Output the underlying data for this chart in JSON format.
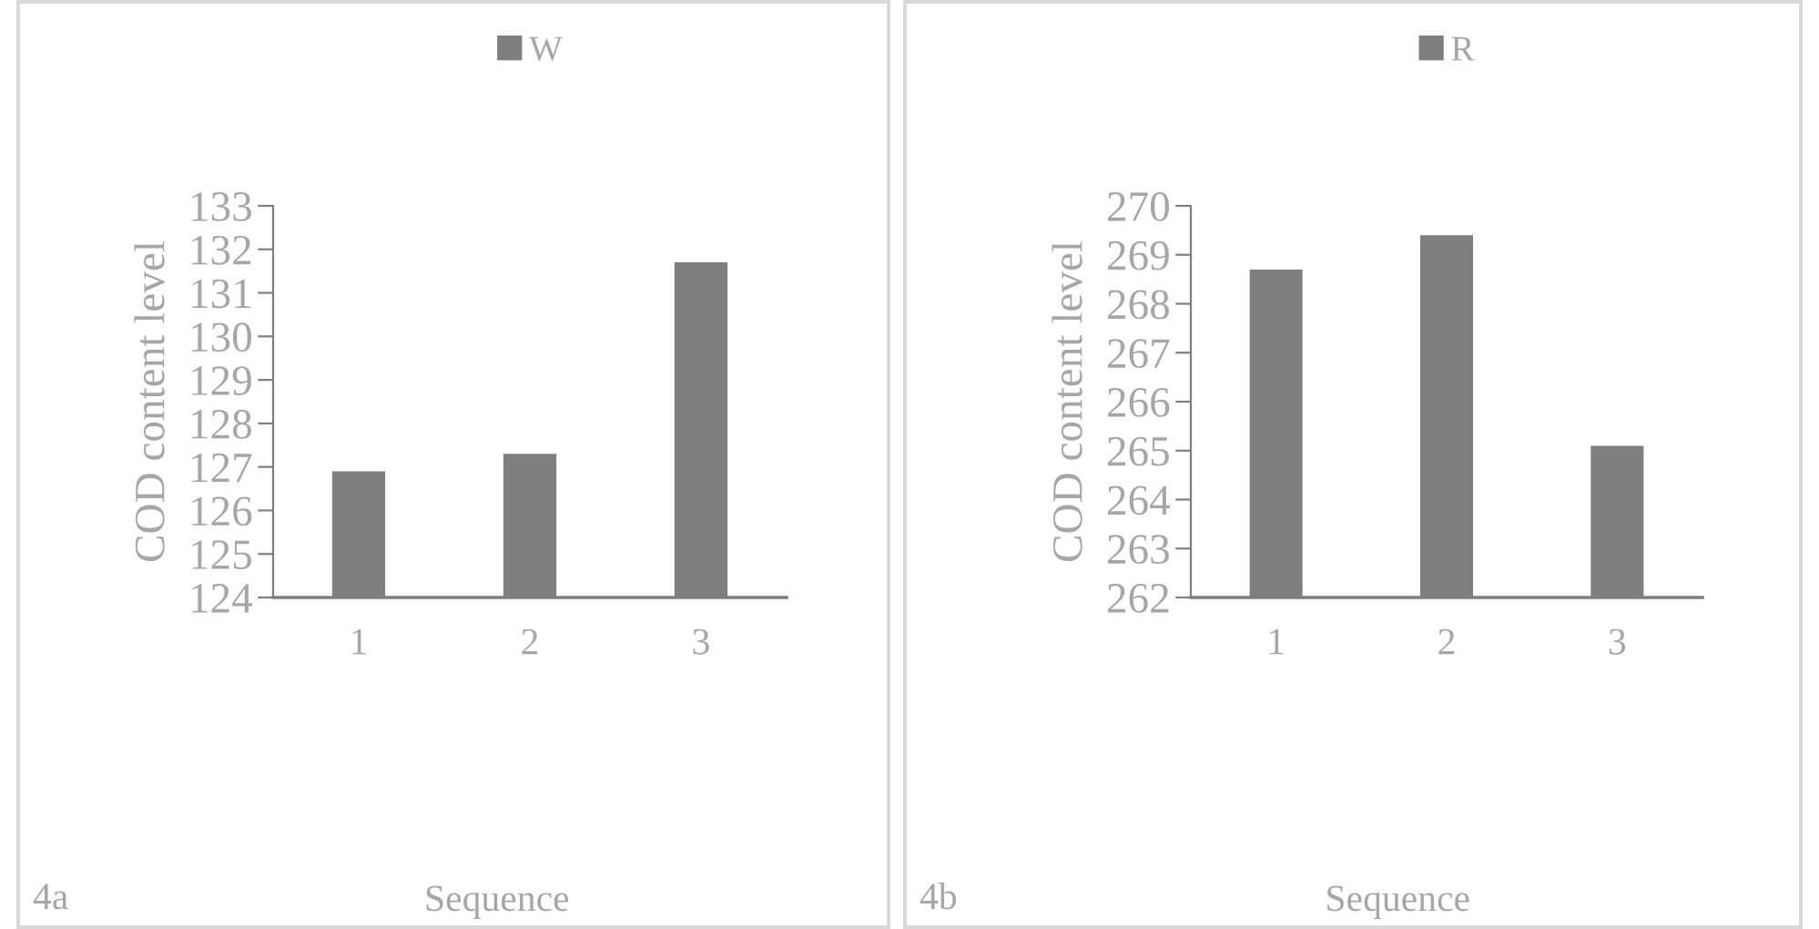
{
  "chart_data": [
    {
      "type": "bar",
      "xlabel": "Sequence",
      "ylabel": "COD content level",
      "categories": [
        "1",
        "2",
        "3"
      ],
      "series": [
        {
          "name": "W",
          "color": "#7f7f7f",
          "values": [
            126.9,
            127.3,
            131.7
          ]
        }
      ],
      "ylim": [
        124,
        133
      ],
      "yticks": [
        124,
        125,
        126,
        127,
        128,
        129,
        130,
        131,
        132,
        133
      ],
      "grid": false,
      "legend": "top",
      "annotations": [
        "4a"
      ]
    },
    {
      "type": "bar",
      "xlabel": "Sequence",
      "ylabel": "COD content level",
      "categories": [
        "1",
        "2",
        "3"
      ],
      "series": [
        {
          "name": "R",
          "color": "#7f7f7f",
          "values": [
            268.7,
            269.4,
            265.1
          ]
        }
      ],
      "ylim": [
        262,
        270
      ],
      "yticks": [
        262,
        263,
        264,
        265,
        266,
        267,
        268,
        269,
        270
      ],
      "grid": false,
      "legend": "top",
      "annotations": [
        "4b"
      ]
    }
  ]
}
